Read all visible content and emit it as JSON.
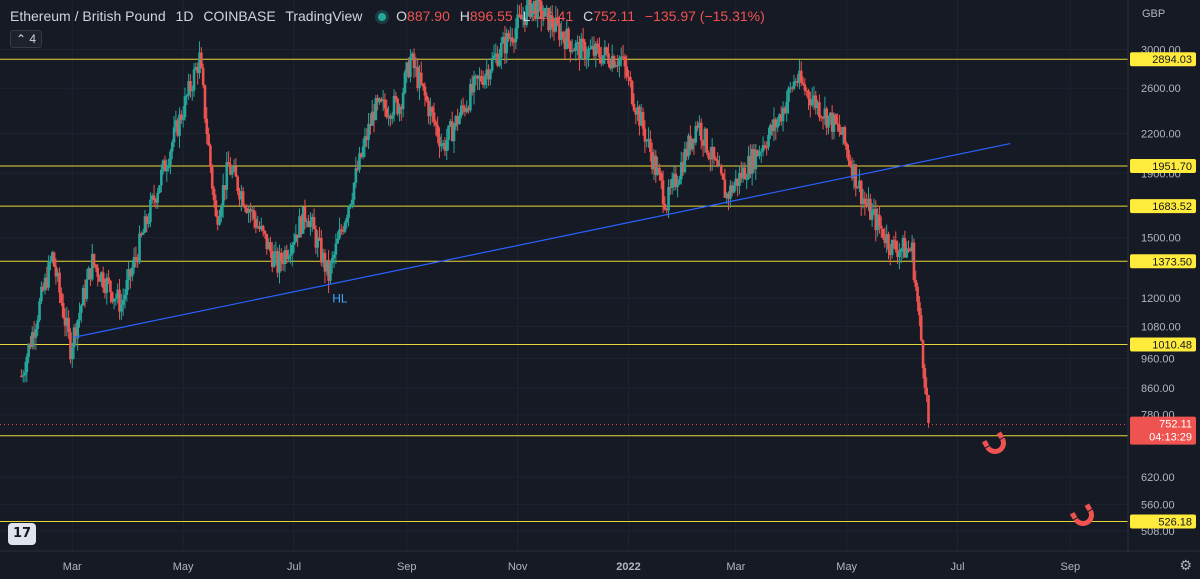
{
  "header": {
    "symbol": "Ethereum / British Pound",
    "interval": "1D",
    "exchange": "COINBASE",
    "source": "TradingView",
    "open_label": "O",
    "open": "887.90",
    "high_label": "H",
    "high": "896.55",
    "low_label": "L",
    "low": "748.41",
    "close_label": "C",
    "close": "752.11",
    "change": "−135.97 (−15.31%)"
  },
  "collapse_count": "4",
  "currency": "GBP",
  "logo_text": "17",
  "colors": {
    "background": "#161a25",
    "up": "#26a69a",
    "down": "#ef5350",
    "level_line": "#ffeb3b",
    "trend_line": "#2962ff",
    "orange_drawing": "#f5a623",
    "green_drawing": "#4caf50"
  },
  "chart_data": {
    "type": "candlestick",
    "scale": "log",
    "y_ticks": [
      3000,
      2600,
      2200,
      1900,
      1500,
      1200,
      1080,
      960,
      860,
      780,
      620,
      560,
      508
    ],
    "x_ticks": [
      "Mar",
      "May",
      "Jul",
      "Sep",
      "Nov",
      "2022",
      "Mar",
      "May",
      "Jul",
      "Sep"
    ],
    "horizontal_levels": [
      2894.03,
      1951.7,
      1683.52,
      1373.5,
      1010.48,
      721.66,
      526.18
    ],
    "last_price": 752.11,
    "countdown": "04:13:29",
    "annotations": [
      "HL"
    ],
    "price_path": [
      [
        "2021-02-01",
        900
      ],
      [
        "2021-02-18",
        1400
      ],
      [
        "2021-02-28",
        1000
      ],
      [
        "2021-03-12",
        1370
      ],
      [
        "2021-03-28",
        1170
      ],
      [
        "2021-04-14",
        1700
      ],
      [
        "2021-05-10",
        2900
      ],
      [
        "2021-05-19",
        1600
      ],
      [
        "2021-05-26",
        1950
      ],
      [
        "2021-06-22",
        1350
      ],
      [
        "2021-07-08",
        1650
      ],
      [
        "2021-07-20",
        1300
      ],
      [
        "2021-08-14",
        2400
      ],
      [
        "2021-08-28",
        2450
      ],
      [
        "2021-09-03",
        2900
      ],
      [
        "2021-09-21",
        2100
      ],
      [
        "2021-10-08",
        2600
      ],
      [
        "2021-11-09",
        3550
      ],
      [
        "2021-12-04",
        3000
      ],
      [
        "2021-12-28",
        2900
      ],
      [
        "2022-01-22",
        1700
      ],
      [
        "2022-02-08",
        2300
      ],
      [
        "2022-02-24",
        1750
      ],
      [
        "2022-03-10",
        2000
      ],
      [
        "2022-03-24",
        2300
      ],
      [
        "2022-04-03",
        2700
      ],
      [
        "2022-04-28",
        2200
      ],
      [
        "2022-05-11",
        1700
      ],
      [
        "2022-05-26",
        1450
      ],
      [
        "2022-06-06",
        1430
      ],
      [
        "2022-06-13",
        900
      ],
      [
        "2022-06-15",
        752.11
      ]
    ]
  }
}
